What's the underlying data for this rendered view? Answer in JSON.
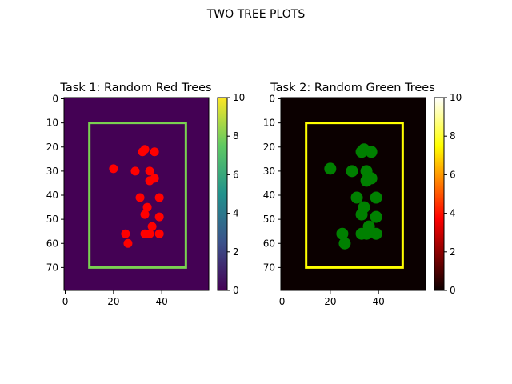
{
  "figure": {
    "suptitle": "TWO TREE PLOTS"
  },
  "chart_data": [
    {
      "type": "scatter",
      "title": "Task 1: Random Red Trees",
      "xlabel": "",
      "ylabel": "",
      "xlim": [
        0,
        59
      ],
      "ylim": [
        79,
        0
      ],
      "xticks": [
        "0",
        "20",
        "40"
      ],
      "yticks": [
        "0",
        "10",
        "20",
        "30",
        "40",
        "50",
        "60",
        "70"
      ],
      "background_value": 0,
      "colormap": "viridis",
      "colorbar": {
        "range": [
          0,
          10
        ],
        "ticks": [
          "0",
          "2",
          "4",
          "6",
          "8",
          "10"
        ]
      },
      "rectangle": {
        "x0": 10,
        "y0": 10,
        "x1": 50,
        "y1": 70,
        "color": "#7ad151"
      },
      "marker_color": "#ff0000",
      "marker_size": "small",
      "points": [
        {
          "x": 32,
          "y": 22
        },
        {
          "x": 33,
          "y": 21
        },
        {
          "x": 37,
          "y": 22
        },
        {
          "x": 20,
          "y": 29
        },
        {
          "x": 29,
          "y": 30
        },
        {
          "x": 35,
          "y": 30
        },
        {
          "x": 37,
          "y": 33
        },
        {
          "x": 35,
          "y": 34
        },
        {
          "x": 31,
          "y": 41
        },
        {
          "x": 39,
          "y": 41
        },
        {
          "x": 34,
          "y": 45
        },
        {
          "x": 33,
          "y": 48
        },
        {
          "x": 39,
          "y": 49
        },
        {
          "x": 36,
          "y": 53
        },
        {
          "x": 25,
          "y": 56
        },
        {
          "x": 33,
          "y": 56
        },
        {
          "x": 35,
          "y": 56
        },
        {
          "x": 39,
          "y": 56
        },
        {
          "x": 26,
          "y": 60
        }
      ]
    },
    {
      "type": "scatter",
      "title": "Task 2: Random Green Trees",
      "xlabel": "",
      "ylabel": "",
      "xlim": [
        0,
        59
      ],
      "ylim": [
        79,
        0
      ],
      "xticks": [
        "0",
        "20",
        "40"
      ],
      "yticks": [
        "0",
        "10",
        "20",
        "30",
        "40",
        "50",
        "60",
        "70"
      ],
      "background_value": 0,
      "colormap": "hot",
      "colorbar": {
        "range": [
          0,
          10
        ],
        "ticks": [
          "0",
          "2",
          "4",
          "6",
          "8",
          "10"
        ]
      },
      "rectangle": {
        "x0": 10,
        "y0": 10,
        "x1": 50,
        "y1": 70,
        "color": "#ffff00"
      },
      "marker_color": "#008000",
      "marker_size": "large",
      "points": [
        {
          "x": 33,
          "y": 22
        },
        {
          "x": 34,
          "y": 21
        },
        {
          "x": 37,
          "y": 22
        },
        {
          "x": 20,
          "y": 29
        },
        {
          "x": 29,
          "y": 30
        },
        {
          "x": 35,
          "y": 30
        },
        {
          "x": 37,
          "y": 33
        },
        {
          "x": 35,
          "y": 34
        },
        {
          "x": 31,
          "y": 41
        },
        {
          "x": 39,
          "y": 41
        },
        {
          "x": 34,
          "y": 45
        },
        {
          "x": 33,
          "y": 48
        },
        {
          "x": 39,
          "y": 49
        },
        {
          "x": 36,
          "y": 53
        },
        {
          "x": 25,
          "y": 56
        },
        {
          "x": 33,
          "y": 56
        },
        {
          "x": 35,
          "y": 56
        },
        {
          "x": 39,
          "y": 56
        },
        {
          "x": 26,
          "y": 60
        }
      ]
    }
  ]
}
